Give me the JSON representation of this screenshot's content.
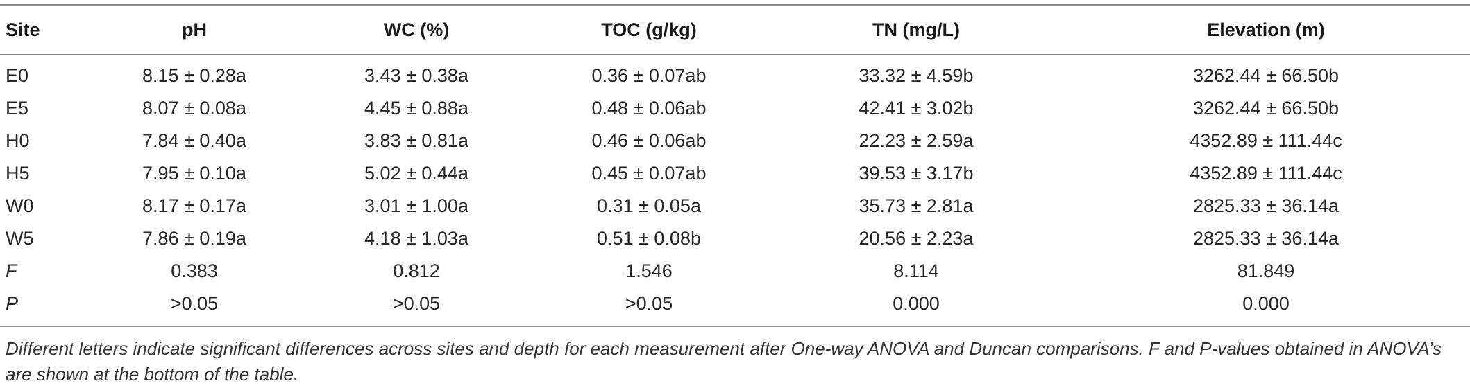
{
  "table": {
    "headers": [
      "Site",
      "pH",
      "WC (%)",
      "TOC (g/kg)",
      "TN (mg/L)",
      "Elevation (m)"
    ],
    "rows": [
      [
        "E0",
        "8.15 ± 0.28a",
        "3.43 ± 0.38a",
        "0.36 ± 0.07ab",
        "33.32 ± 4.59b",
        "3262.44 ± 66.50b"
      ],
      [
        "E5",
        "8.07 ± 0.08a",
        "4.45 ± 0.88a",
        "0.48 ± 0.06ab",
        "42.41 ± 3.02b",
        "3262.44 ± 66.50b"
      ],
      [
        "H0",
        "7.84 ± 0.40a",
        "3.83 ± 0.81a",
        "0.46 ± 0.06ab",
        "22.23 ± 2.59a",
        "4352.89 ± 111.44c"
      ],
      [
        "H5",
        "7.95 ± 0.10a",
        "5.02 ± 0.44a",
        "0.45 ± 0.07ab",
        "39.53 ± 3.17b",
        "4352.89 ± 111.44c"
      ],
      [
        "W0",
        "8.17 ± 0.17a",
        "3.01 ± 1.00a",
        "0.31 ± 0.05a",
        "35.73 ± 2.81a",
        "2825.33 ± 36.14a"
      ],
      [
        "W5",
        "7.86 ± 0.19a",
        "4.18 ± 1.03a",
        "0.51 ± 0.08b",
        "20.56 ± 2.23a",
        "2825.33 ± 36.14a"
      ],
      [
        "F",
        "0.383",
        "0.812",
        "1.546",
        "8.114",
        "81.849"
      ],
      [
        "P",
        ">0.05",
        ">0.05",
        ">0.05",
        "0.000",
        "0.000"
      ]
    ]
  },
  "footnote": "Different letters indicate significant differences across sites and depth for each measurement after One-way ANOVA and Duncan comparisons. F and P-values obtained in ANOVA’s are shown at the bottom of the table."
}
